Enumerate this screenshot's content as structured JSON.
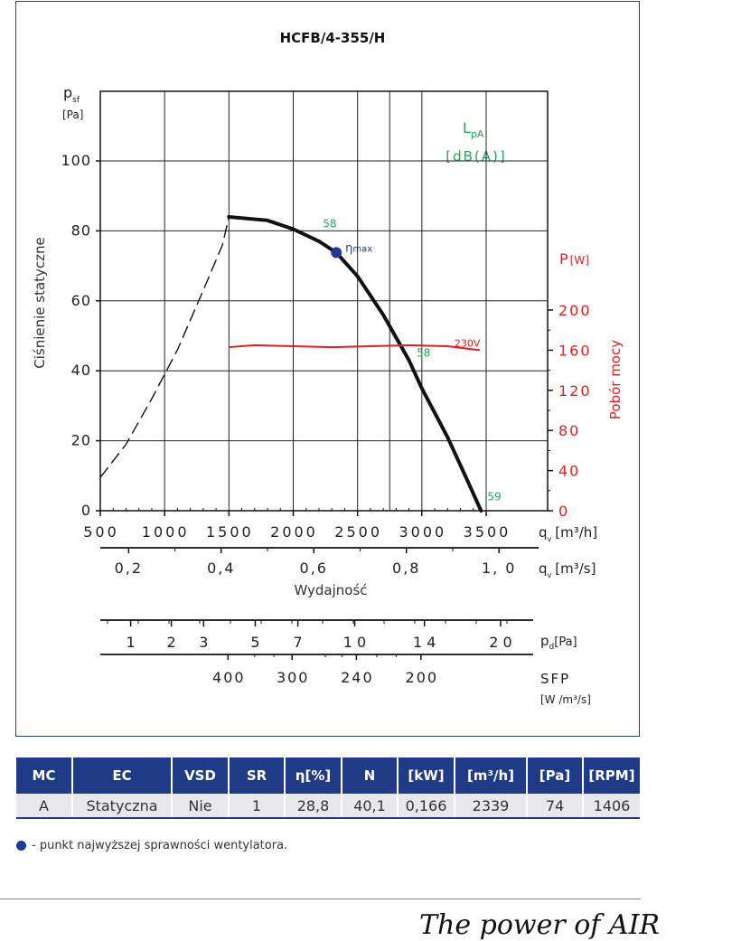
{
  "chart_data": {
    "type": "line",
    "title": "HCFB/4-355/H",
    "y_axis": {
      "label_symbol": "p",
      "label_sub": "sf",
      "unit": "[Pa]",
      "title": "Ciśnienie statyczne",
      "range": [
        0,
        100
      ],
      "ticks": [
        "0",
        "20",
        "40",
        "60",
        "80",
        "100"
      ]
    },
    "x_axis": {
      "label_symbol": "q",
      "label_sub": "v",
      "unit": "[m³/h]",
      "range": [
        500,
        3500
      ],
      "ticks": [
        "500",
        "1000",
        "1500",
        "2000",
        "2500",
        "3000",
        "3500"
      ]
    },
    "x_axis_2": {
      "label_symbol": "q",
      "label_sub": "v",
      "unit": "[m³/s]",
      "title": "Wydajność",
      "ticks": [
        {
          "value": 0.2,
          "label": "0,2"
        },
        {
          "value": 0.4,
          "label": "0,4"
        },
        {
          "value": 0.6,
          "label": "0,6"
        },
        {
          "value": 0.8,
          "label": "0,8"
        },
        {
          "value": 1.0,
          "label": "1, 0"
        }
      ]
    },
    "y_axis_right": {
      "label_symbol": "P",
      "unit": "[W]",
      "title": "Pobór mocy",
      "range": [
        0,
        200
      ],
      "ticks": [
        "0",
        "40",
        "80",
        "120",
        "160",
        "200"
      ]
    },
    "scale_pd": {
      "label_symbol": "p",
      "label_sub": "d",
      "unit": "[Pa]",
      "ticks": [
        {
          "value": 1,
          "label": "1",
          "q": 1265
        },
        {
          "value": 2,
          "label": "2",
          "q": 1580
        },
        {
          "value": 3,
          "label": "3",
          "q": 1830
        },
        {
          "value": 5,
          "label": "5",
          "q": 2230
        },
        {
          "value": 7,
          "label": "7",
          "q": 2560
        },
        {
          "value": 10,
          "label": "1 0",
          "q": 3000
        },
        {
          "value": 14,
          "label": "1 4",
          "q": 3540
        },
        {
          "value": 20,
          "label": "2 0",
          "q": 4130
        }
      ]
    },
    "scale_sfp": {
      "label": "SFP",
      "unit": "[W /m³/s]",
      "ticks": [
        {
          "value": 400,
          "label": "400",
          "q": 1500
        },
        {
          "value": 300,
          "label": "300",
          "q": 1998
        },
        {
          "value": 240,
          "label": "240",
          "q": 2498
        },
        {
          "value": 200,
          "label": "200",
          "q": 3000
        }
      ]
    },
    "lpa": {
      "label": "L",
      "label_sub": "pA",
      "unit": "[dB(A)]"
    },
    "series": [
      {
        "kind": "pressure",
        "points": [
          [
            1500,
            84
          ],
          [
            1800,
            83
          ],
          [
            2000,
            80.5
          ],
          [
            2200,
            77
          ],
          [
            2335,
            73.8
          ],
          [
            2500,
            67
          ],
          [
            2700,
            56
          ],
          [
            2900,
            43
          ],
          [
            3000,
            35
          ],
          [
            3200,
            21
          ],
          [
            3350,
            9
          ],
          [
            3460,
            0
          ]
        ]
      },
      {
        "kind": "pressure-unstable",
        "points": [
          [
            500,
            9.5
          ],
          [
            700,
            19
          ],
          [
            900,
            32
          ],
          [
            1100,
            46
          ],
          [
            1300,
            63
          ],
          [
            1450,
            76
          ],
          [
            1500,
            84
          ]
        ]
      },
      {
        "kind": "power",
        "name": "230V",
        "points": [
          [
            1500,
            163
          ],
          [
            1700,
            165
          ],
          [
            2000,
            164
          ],
          [
            2300,
            163
          ],
          [
            2600,
            164
          ],
          [
            2900,
            165
          ],
          [
            3200,
            164
          ],
          [
            3450,
            160
          ]
        ]
      }
    ],
    "markers": {
      "eta_max": {
        "q": 2335,
        "p": 73.8,
        "label": "η",
        "label_sub": "max"
      },
      "noise_labels": [
        {
          "q": 2230,
          "p": 81,
          "value": "58"
        },
        {
          "q": 2960,
          "p": 44,
          "value": "58"
        },
        {
          "q": 3510,
          "p": 3,
          "value": "59"
        }
      ]
    },
    "grid": true
  },
  "colors": {
    "frame": "#1f3f8f",
    "pressure": "#111111",
    "power": "#e02020",
    "lpa": "#2aa05a",
    "eta_dot": "#1f3b8f",
    "table_header": "#1f3b88"
  },
  "table": {
    "headers": [
      "MC",
      "EC",
      "VSD",
      "SR",
      "η[%]",
      "N",
      "[kW]",
      "[m³/h]",
      "[Pa]",
      "[RPM]"
    ],
    "row": [
      "A",
      "Statyczna",
      "Nie",
      "1",
      "28,8",
      "40,1",
      "0,166",
      "2339",
      "74",
      "1406"
    ]
  },
  "legend_note": "- punkt najwyższej sprawności wentylatora.",
  "signature": "The power of AIR"
}
